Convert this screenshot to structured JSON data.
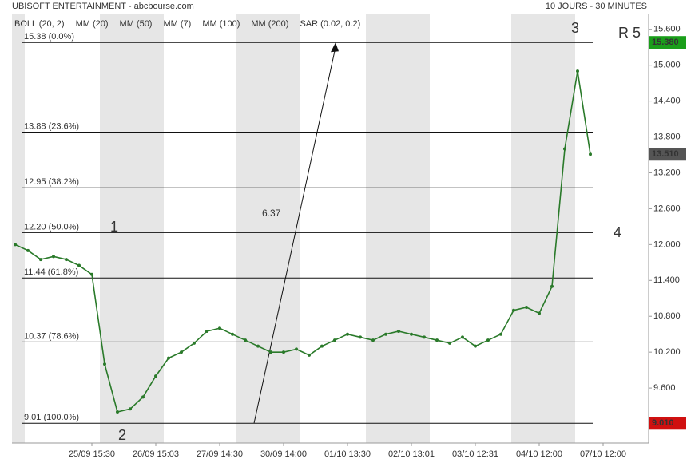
{
  "chart_data": {
    "type": "line",
    "title": "UBISOFT ENTERTAINMENT - abcbourse.com",
    "subtitle": "10 JOURS - 30 MINUTES",
    "legend_items": [
      {
        "label": "BOLL (20, 2)",
        "color": "#333333"
      },
      {
        "label": "MM (20)",
        "color": "#4a6fe3"
      },
      {
        "label": "MM (50)",
        "color": "#e02020"
      },
      {
        "label": "MM (7)",
        "color": "#1a8a1a"
      },
      {
        "label": "MM (100)",
        "color": "#f07a10"
      },
      {
        "label": "MM (200)",
        "color": "#8b1a1a"
      },
      {
        "label": "SAR (0.02, 0.2)",
        "color": "#d01010"
      }
    ],
    "categories": [
      null,
      null,
      null,
      null,
      null,
      null,
      "25/09 15:30",
      null,
      null,
      null,
      null,
      "26/09 15:03",
      null,
      null,
      null,
      null,
      "27/09 14:30",
      null,
      null,
      null,
      null,
      "30/09 14:00",
      null,
      null,
      null,
      null,
      "01/10 13:30",
      null,
      null,
      null,
      null,
      "02/10 13:01",
      null,
      null,
      null,
      null,
      "03/10 12:31",
      null,
      null,
      null,
      null,
      "04/10 12:00",
      null,
      null,
      null,
      null,
      "07/10 12:00"
    ],
    "series": [
      {
        "name": "UBISOFT ENTERTAINMENT",
        "color": "#2a7a2a",
        "values": [
          12.0,
          11.9,
          11.75,
          11.8,
          11.75,
          11.65,
          11.5,
          10.0,
          9.2,
          9.25,
          9.45,
          9.8,
          10.1,
          10.2,
          10.35,
          10.55,
          10.6,
          10.5,
          10.4,
          10.3,
          10.2,
          10.2,
          10.25,
          10.15,
          10.3,
          10.4,
          10.5,
          10.45,
          10.4,
          10.5,
          10.55,
          10.5,
          10.45,
          10.4,
          10.35,
          10.45,
          10.3,
          10.4,
          10.5,
          10.9,
          10.95,
          10.85,
          11.3,
          13.6,
          14.9,
          13.51,
          null
        ]
      }
    ],
    "ylim": [
      8.68,
      15.85
    ],
    "yticks": [
      {
        "value": 9.6,
        "label": "9.600"
      },
      {
        "value": 10.2,
        "label": "10.200"
      },
      {
        "value": 10.8,
        "label": "10.800"
      },
      {
        "value": 11.4,
        "label": "11.400"
      },
      {
        "value": 12.0,
        "label": "12.000"
      },
      {
        "value": 12.6,
        "label": "12.600"
      },
      {
        "value": 13.2,
        "label": "13.200"
      },
      {
        "value": 13.8,
        "label": "13.800"
      },
      {
        "value": 14.4,
        "label": "14.400"
      },
      {
        "value": 15.0,
        "label": "15.000"
      },
      {
        "value": 15.6,
        "label": "15.600"
      }
    ],
    "fib_levels": [
      {
        "value": 15.38,
        "label": "15.38  (0.0%)"
      },
      {
        "value": 13.88,
        "label": "13.88  (23.6%)"
      },
      {
        "value": 12.95,
        "label": "12.95  (38.2%)"
      },
      {
        "value": 12.2,
        "label": "12.20  (50.0%)"
      },
      {
        "value": 11.44,
        "label": "11.44  (61.8%)"
      },
      {
        "value": 10.37,
        "label": "10.37  (78.6%)"
      },
      {
        "value": 9.01,
        "label": "9.01  (100.0%)"
      }
    ],
    "arrow_label": "6.37",
    "price_tags": [
      {
        "value": 15.38,
        "label": "15.380",
        "color": "#1a9e1a"
      },
      {
        "value": 13.51,
        "label": "13.510",
        "color": "#555555"
      },
      {
        "value": 9.01,
        "label": "9.010",
        "color": "#d01010"
      }
    ],
    "wave_labels": [
      "1",
      "2",
      "3",
      "4",
      "R 5"
    ]
  }
}
